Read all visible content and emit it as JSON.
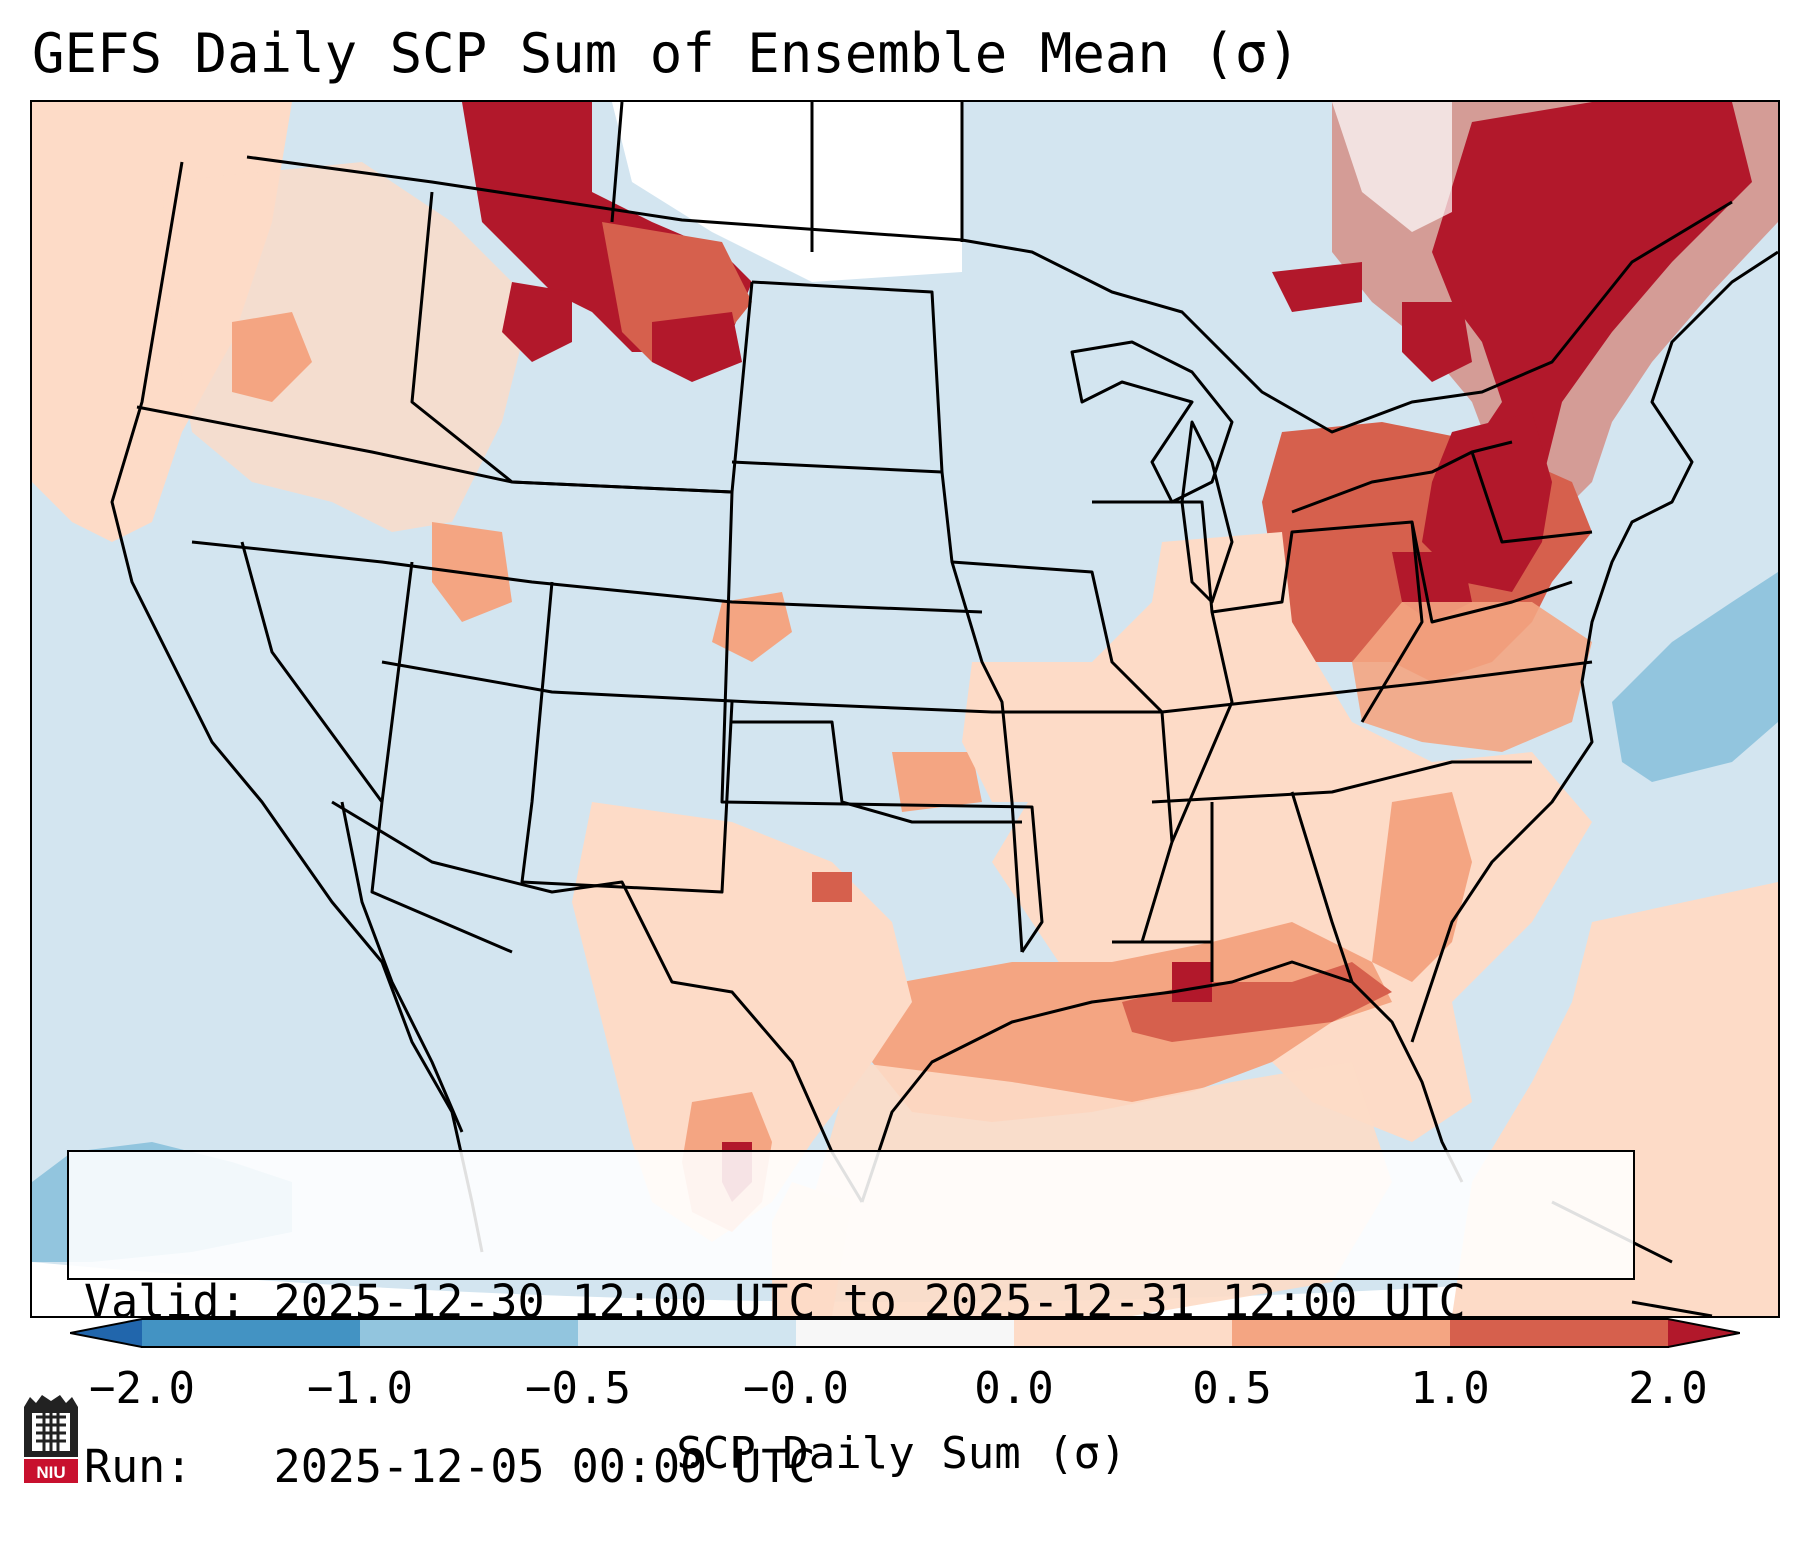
{
  "title": "GEFS Daily SCP Sum of Ensemble Mean (σ)",
  "info": {
    "valid_line": "Valid: 2025-12-30 12:00 UTC to 2025-12-31 12:00 UTC",
    "run_line": "Run:   2025-12-05 00:00 UTC"
  },
  "colorbar": {
    "label": "SCP Daily Sum (σ)",
    "ticks": [
      "−2.0",
      "−1.0",
      "−0.5",
      "−0.0",
      "0.0",
      "0.5",
      "1.0",
      "2.0"
    ],
    "bins": [
      {
        "range": "< -2.0",
        "color": "#2166ac"
      },
      {
        "range": "-2.0 to -1.0",
        "color": "#4393c3"
      },
      {
        "range": "-1.0 to -0.5",
        "color": "#92c5de"
      },
      {
        "range": "-0.5 to -0.0",
        "color": "#d1e5f0"
      },
      {
        "range": "-0.0 to 0.0",
        "color": "#f7f7f7"
      },
      {
        "range": "0.0 to 0.5",
        "color": "#fddbc7"
      },
      {
        "range": "0.5 to 1.0",
        "color": "#f4a582"
      },
      {
        "range": "1.0 to 2.0",
        "color": "#d6604d"
      },
      {
        "range": "> 2.0",
        "color": "#b2182b"
      }
    ]
  },
  "map": {
    "region": "Contiguous United States",
    "background_color": "#d3e5f0",
    "anomaly_areas": [
      {
        "name": "southeast-us-gulf-coast",
        "level": "0.0 to 0.5",
        "color": "#fddbc7"
      },
      {
        "name": "gulf-coast-band",
        "level": "0.5 to 1.0",
        "color": "#f4a582"
      },
      {
        "name": "ohio-valley",
        "level": "1.0 to 2.0",
        "color": "#d6604d"
      },
      {
        "name": "northeast-appalachians",
        "level": "> 2.0",
        "color": "#b2182b"
      },
      {
        "name": "south-texas",
        "level": "> 2.0",
        "color": "#b2182b"
      },
      {
        "name": "montana-alberta",
        "level": "> 2.0",
        "color": "#b2182b"
      },
      {
        "name": "quebec",
        "level": "> 2.0",
        "color": "#b2182b"
      },
      {
        "name": "pacific-northwest",
        "level": "0.0 to 0.5",
        "color": "#fddbc7"
      },
      {
        "name": "western-atlantic",
        "level": "-1.0 to -0.5",
        "color": "#92c5de"
      }
    ]
  },
  "logo": {
    "text": "NIU"
  }
}
